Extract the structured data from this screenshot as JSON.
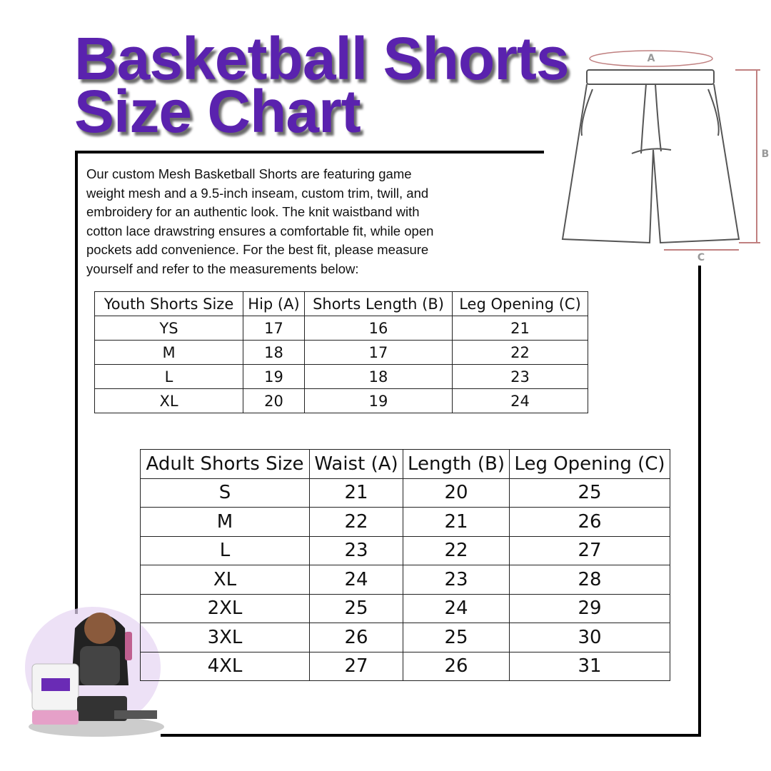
{
  "title": {
    "line1": "Basketball Shorts",
    "line2": "Size Chart"
  },
  "description": [
    "Our custom Mesh Basketball Shorts are featuring game",
    "weight mesh and a 9.5-inch inseam, custom trim, twill, and",
    "embroidery for an authentic look. The knit waistband with",
    "cotton lace drawstring ensures a comfortable fit, while open",
    "pockets add convenience. For the best fit, please measure",
    "yourself and refer to the measurements below:"
  ],
  "youth_table": {
    "headers": [
      "Youth Shorts Size",
      "Hip (A)",
      "Shorts Length (B)",
      "Leg Opening (C)"
    ],
    "rows": [
      [
        "YS",
        17,
        16,
        21
      ],
      [
        "M",
        18,
        17,
        22
      ],
      [
        "L",
        19,
        18,
        23
      ],
      [
        "XL",
        20,
        19,
        24
      ]
    ]
  },
  "adult_table": {
    "headers": [
      "Adult Shorts Size",
      "Waist (A)",
      "Length (B)",
      "Leg Opening (C)"
    ],
    "rows": [
      [
        "S",
        21,
        20,
        25
      ],
      [
        "M",
        22,
        21,
        26
      ],
      [
        "L",
        23,
        22,
        27
      ],
      [
        "XL",
        24,
        23,
        28
      ],
      [
        "2XL",
        25,
        24,
        29
      ],
      [
        "3XL",
        26,
        25,
        30
      ],
      [
        "4XL",
        27,
        26,
        31
      ]
    ]
  },
  "diagram": {
    "labels": [
      "A",
      "B",
      "C"
    ]
  }
}
